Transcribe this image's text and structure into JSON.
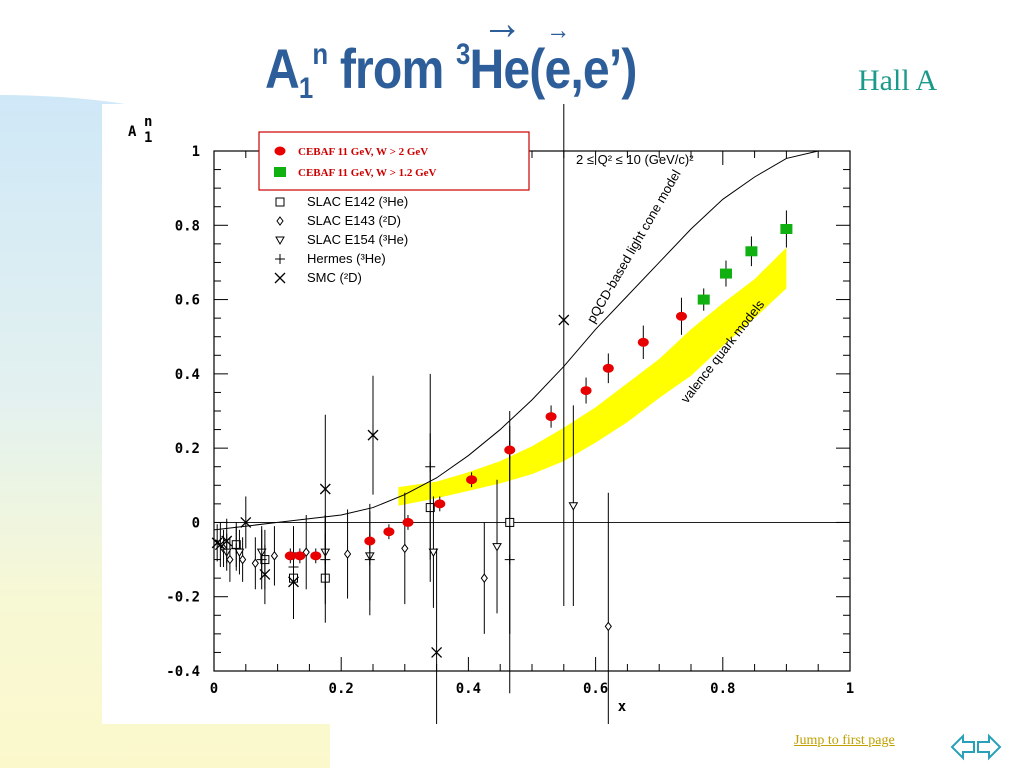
{
  "slide": {
    "title_main": "A",
    "title_sub": "1",
    "title_sup": "n",
    "title_from": " from ",
    "title_iso_sup": "3",
    "title_target": "He(",
    "title_e": "e",
    "title_comma": ",",
    "title_e2": "e",
    "title_close": "’)",
    "title_arrow": "→",
    "hall": "Hall A",
    "nav_text": "Jump to first page"
  },
  "colors": {
    "title": "#2e5e9a",
    "hall": "#1b9a8b",
    "red": "#e80000",
    "green": "#10b010",
    "band": "#ffff00"
  },
  "chart_data": {
    "type": "scatter",
    "ylabel_main": "A",
    "ylabel_sup": "n",
    "ylabel_sub": "1",
    "xlabel": "x",
    "xlim": [
      0,
      1
    ],
    "ylim": [
      -0.4,
      1
    ],
    "xticks": [
      "0",
      "0.2",
      "0.4",
      "0.6",
      "0.8",
      "1"
    ],
    "yticks": [
      "-0.4",
      "-0.2",
      "0",
      "0.2",
      "0.4",
      "0.6",
      "0.8",
      "1"
    ],
    "q2_range": "2 ≤ Q² ≤ 10 (GeV/c)²",
    "annotations": {
      "pqcd": "pQCD-based light cone model",
      "valence": "valence quark models"
    },
    "legend": [
      {
        "label": "CEBAF 11 GeV, W > 2 GeV",
        "marker": "red-ellipse"
      },
      {
        "label": "CEBAF 11 GeV, W > 1.2 GeV",
        "marker": "green-square"
      },
      {
        "label": "SLAC E142 (³He)",
        "marker": "open-square"
      },
      {
        "label": "SLAC E143 (²D)",
        "marker": "open-diamond"
      },
      {
        "label": "SLAC E154  (³He)",
        "marker": "open-triangle"
      },
      {
        "label": "Hermes  (³He)",
        "marker": "plus"
      },
      {
        "label": "SMC (²D)",
        "marker": "cross"
      }
    ],
    "series": [
      {
        "name": "CEBAF 11 GeV, W > 2 GeV",
        "marker": "red-ellipse",
        "points": [
          [
            0.12,
            -0.09,
            0.02
          ],
          [
            0.135,
            -0.09,
            0.02
          ],
          [
            0.16,
            -0.09,
            0.02
          ],
          [
            0.245,
            -0.05,
            0.02
          ],
          [
            0.275,
            -0.025,
            0.02
          ],
          [
            0.305,
            0.0,
            0.02
          ],
          [
            0.355,
            0.05,
            0.02
          ],
          [
            0.405,
            0.115,
            0.02
          ],
          [
            0.465,
            0.195,
            0.025
          ],
          [
            0.53,
            0.285,
            0.03
          ],
          [
            0.585,
            0.355,
            0.035
          ],
          [
            0.62,
            0.415,
            0.04
          ],
          [
            0.675,
            0.485,
            0.045
          ],
          [
            0.735,
            0.555,
            0.05
          ]
        ]
      },
      {
        "name": "CEBAF 11 GeV, W > 1.2 GeV",
        "marker": "green-square",
        "points": [
          [
            0.77,
            0.6,
            0.03
          ],
          [
            0.805,
            0.67,
            0.035
          ],
          [
            0.845,
            0.73,
            0.04
          ],
          [
            0.9,
            0.79,
            0.05
          ]
        ]
      },
      {
        "name": "SLAC E142 (³He)",
        "marker": "open-square",
        "points": [
          [
            0.035,
            -0.06,
            0.06
          ],
          [
            0.08,
            -0.1,
            0.08
          ],
          [
            0.125,
            -0.15,
            0.1
          ],
          [
            0.175,
            -0.15,
            0.12
          ],
          [
            0.34,
            0.04,
            0.2
          ],
          [
            0.465,
            0.0,
            0.3
          ]
        ]
      },
      {
        "name": "SLAC E143 (²D)",
        "marker": "open-diamond",
        "points": [
          [
            0.015,
            -0.07,
            0.05
          ],
          [
            0.025,
            -0.1,
            0.06
          ],
          [
            0.045,
            -0.1,
            0.06
          ],
          [
            0.065,
            -0.11,
            0.07
          ],
          [
            0.095,
            -0.09,
            0.08
          ],
          [
            0.145,
            -0.08,
            0.1
          ],
          [
            0.21,
            -0.085,
            0.12
          ],
          [
            0.3,
            -0.07,
            0.15
          ],
          [
            0.425,
            -0.15,
            0.15
          ],
          [
            0.62,
            -0.28,
            0.36
          ]
        ]
      },
      {
        "name": "SLAC E154  (³He)",
        "marker": "open-triangle",
        "points": [
          [
            0.02,
            -0.08,
            0.05
          ],
          [
            0.04,
            -0.08,
            0.06
          ],
          [
            0.075,
            -0.08,
            0.07
          ],
          [
            0.125,
            -0.09,
            0.08
          ],
          [
            0.175,
            -0.08,
            0.1
          ],
          [
            0.245,
            -0.09,
            0.12
          ],
          [
            0.345,
            -0.08,
            0.15
          ],
          [
            0.445,
            -0.065,
            0.18
          ],
          [
            0.565,
            0.045,
            0.27
          ]
        ]
      },
      {
        "name": "Hermes  (³He)",
        "marker": "plus",
        "points": [
          [
            0.035,
            -0.07,
            0.06
          ],
          [
            0.075,
            -0.1,
            0.08
          ],
          [
            0.125,
            -0.12,
            0.1
          ],
          [
            0.175,
            -0.1,
            0.12
          ],
          [
            0.245,
            -0.1,
            0.15
          ],
          [
            0.34,
            0.15,
            0.25
          ],
          [
            0.465,
            -0.1,
            0.36
          ]
        ]
      },
      {
        "name": "SMC (²D)",
        "marker": "cross",
        "points": [
          [
            0.005,
            -0.055,
            0.05
          ],
          [
            0.01,
            -0.06,
            0.06
          ],
          [
            0.02,
            -0.05,
            0.06
          ],
          [
            0.05,
            0.0,
            0.07
          ],
          [
            0.08,
            -0.14,
            0.08
          ],
          [
            0.125,
            -0.16,
            0.1
          ],
          [
            0.175,
            0.09,
            0.2
          ],
          [
            0.25,
            0.235,
            0.16
          ],
          [
            0.35,
            -0.35,
            0.28
          ],
          [
            0.55,
            0.545,
            0.77
          ]
        ]
      }
    ],
    "pqcd_curve": [
      [
        0.0,
        -0.02
      ],
      [
        0.1,
        0.0
      ],
      [
        0.2,
        0.02
      ],
      [
        0.25,
        0.04
      ],
      [
        0.3,
        0.075
      ],
      [
        0.35,
        0.12
      ],
      [
        0.4,
        0.18
      ],
      [
        0.45,
        0.25
      ],
      [
        0.5,
        0.33
      ],
      [
        0.55,
        0.42
      ],
      [
        0.6,
        0.52
      ],
      [
        0.65,
        0.61
      ],
      [
        0.7,
        0.7
      ],
      [
        0.75,
        0.79
      ],
      [
        0.8,
        0.87
      ],
      [
        0.85,
        0.93
      ],
      [
        0.9,
        0.98
      ],
      [
        0.95,
        1.0
      ]
    ],
    "valence_band": {
      "upper": [
        [
          0.29,
          0.095
        ],
        [
          0.35,
          0.11
        ],
        [
          0.4,
          0.135
        ],
        [
          0.45,
          0.165
        ],
        [
          0.5,
          0.205
        ],
        [
          0.55,
          0.255
        ],
        [
          0.6,
          0.31
        ],
        [
          0.65,
          0.375
        ],
        [
          0.7,
          0.44
        ],
        [
          0.75,
          0.52
        ],
        [
          0.8,
          0.59
        ],
        [
          0.85,
          0.655
        ],
        [
          0.9,
          0.74
        ]
      ],
      "lower": [
        [
          0.29,
          0.045
        ],
        [
          0.35,
          0.065
        ],
        [
          0.4,
          0.085
        ],
        [
          0.45,
          0.105
        ],
        [
          0.5,
          0.13
        ],
        [
          0.55,
          0.165
        ],
        [
          0.6,
          0.215
        ],
        [
          0.65,
          0.27
        ],
        [
          0.7,
          0.335
        ],
        [
          0.75,
          0.395
        ],
        [
          0.8,
          0.475
        ],
        [
          0.85,
          0.55
        ],
        [
          0.9,
          0.63
        ]
      ]
    }
  }
}
